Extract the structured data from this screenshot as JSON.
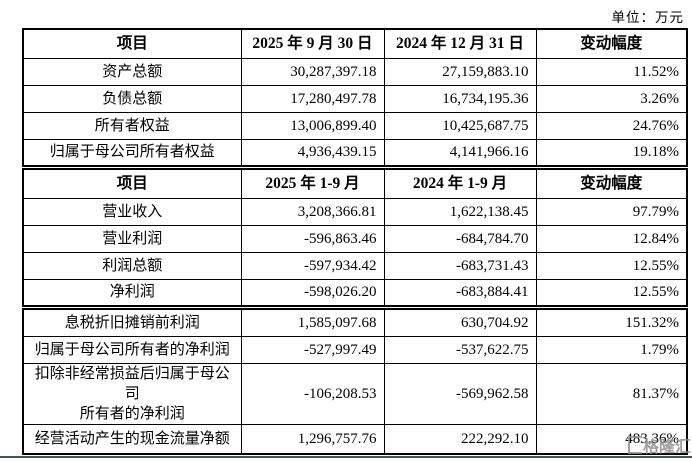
{
  "unit_label": "单位：万元",
  "watermark": {
    "logo_icon": "gelonghui-logo",
    "text": "格隆汇"
  },
  "colors": {
    "border": "#000000",
    "bottom_line": "#3c5a54",
    "watermark_grey": "#8f8f8f"
  },
  "tables": [
    {
      "header": [
        "项目",
        "2025 年 9 月 30 日",
        "2024 年 12 月 31 日",
        "变动幅度"
      ],
      "rows": [
        [
          "资产总额",
          "30,287,397.18",
          "27,159,883.10",
          "11.52%"
        ],
        [
          "负债总额",
          "17,280,497.78",
          "16,734,195.36",
          "3.26%"
        ],
        [
          "所有者权益",
          "13,006,899.40",
          "10,425,687.75",
          "24.76%"
        ],
        [
          "归属于母公司所有者权益",
          "4,936,439.15",
          "4,141,966.16",
          "19.18%"
        ]
      ]
    },
    {
      "header": [
        "项目",
        "2025 年 1-9 月",
        "2024 年 1-9 月",
        "变动幅度"
      ],
      "rows": [
        [
          "营业收入",
          "3,208,366.81",
          "1,622,138.45",
          "97.79%"
        ],
        [
          "营业利润",
          "-596,863.46",
          "-684,784.70",
          "12.84%"
        ],
        [
          "利润总额",
          "-597,934.42",
          "-683,731.43",
          "12.55%"
        ],
        [
          "净利润",
          "-598,026.20",
          "-683,884.41",
          "12.55%"
        ]
      ]
    },
    {
      "header": null,
      "rows": [
        [
          "息税折旧摊销前利润",
          "1,585,097.68",
          "630,704.92",
          "151.32%"
        ],
        [
          "归属于母公司所有者的净利润",
          "-527,997.49",
          "-537,622.75",
          "1.79%"
        ],
        [
          "扣除非经常损益后归属于母公司\n所有者的净利润",
          "-106,208.53",
          "-569,962.58",
          "81.37%"
        ],
        [
          "经营活动产生的现金流量净额",
          "1,296,757.76",
          "222,292.10",
          "483.36%"
        ]
      ]
    }
  ]
}
